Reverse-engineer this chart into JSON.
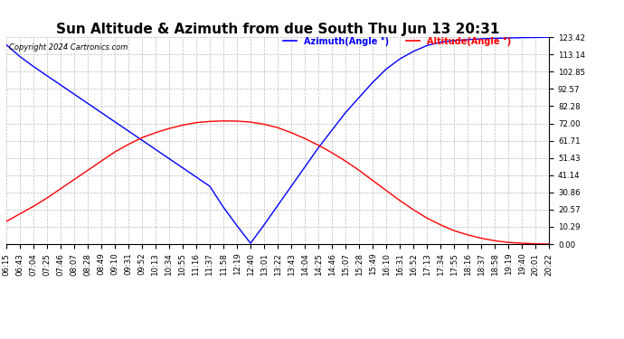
{
  "title": "Sun Altitude & Azimuth from due South Thu Jun 13 20:31",
  "copyright": "Copyright 2024 Cartronics.com",
  "legend_azimuth": "Azimuth(Angle °)",
  "legend_altitude": "Altitude(Angle °)",
  "azimuth_color": "blue",
  "altitude_color": "red",
  "y_ticks": [
    0.0,
    10.29,
    20.57,
    30.86,
    41.14,
    51.43,
    61.71,
    72.0,
    82.28,
    92.57,
    102.85,
    113.14,
    123.42
  ],
  "x_labels": [
    "06:15",
    "06:43",
    "07:04",
    "07:25",
    "07:46",
    "08:07",
    "08:28",
    "08:49",
    "09:10",
    "09:31",
    "09:52",
    "10:13",
    "10:34",
    "10:55",
    "11:16",
    "11:37",
    "11:58",
    "12:19",
    "12:40",
    "13:01",
    "13:22",
    "13:43",
    "14:04",
    "14:25",
    "14:46",
    "15:07",
    "15:28",
    "15:49",
    "16:10",
    "16:31",
    "16:52",
    "17:13",
    "17:34",
    "17:55",
    "18:16",
    "18:37",
    "18:58",
    "19:19",
    "19:40",
    "20:01",
    "20:22"
  ],
  "background_color": "#ffffff",
  "grid_color": "#bbbbbb",
  "title_fontsize": 11,
  "tick_fontsize": 6.2,
  "azimuth_values": [
    119.0,
    112.0,
    106.0,
    100.5,
    95.0,
    89.5,
    84.0,
    78.5,
    73.0,
    67.5,
    62.0,
    56.5,
    51.0,
    45.5,
    40.0,
    34.5,
    22.0,
    11.0,
    0.5,
    11.5,
    23.0,
    34.5,
    46.0,
    57.5,
    68.0,
    78.5,
    87.5,
    96.5,
    104.5,
    110.5,
    115.0,
    118.5,
    120.5,
    121.5,
    122.0,
    122.5,
    122.8,
    123.0,
    123.2,
    123.3,
    123.42
  ],
  "altitude_values": [
    13.5,
    18.0,
    22.5,
    27.5,
    33.0,
    38.5,
    44.0,
    49.5,
    55.0,
    59.5,
    63.5,
    66.5,
    69.0,
    71.0,
    72.5,
    73.2,
    73.5,
    73.4,
    72.8,
    71.5,
    69.5,
    66.5,
    63.0,
    59.0,
    54.5,
    49.5,
    44.0,
    38.0,
    32.0,
    26.0,
    20.5,
    15.5,
    11.5,
    8.0,
    5.5,
    3.5,
    2.0,
    1.0,
    0.5,
    0.2,
    0.0
  ]
}
